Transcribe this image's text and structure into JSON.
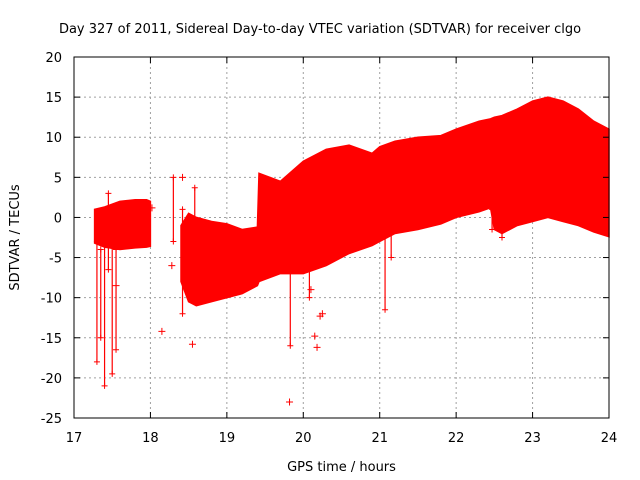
{
  "chart_data": {
    "type": "scatter",
    "title": "Day 327 of 2011, Sidereal Day-to-day VTEC variation (SDTVAR) for receiver clgo",
    "xlabel": "GPS time / hours",
    "ylabel": "SDTVAR / TECUs",
    "xlim": [
      17,
      24
    ],
    "ylim": [
      -25,
      20
    ],
    "xticks": [
      17,
      18,
      19,
      20,
      21,
      22,
      23,
      24
    ],
    "xtick_labels": [
      "17",
      "18",
      "19",
      "20",
      "21",
      "22",
      "23",
      "24"
    ],
    "yticks": [
      -25,
      -20,
      -15,
      -10,
      -5,
      0,
      5,
      10,
      15,
      20
    ],
    "ytick_labels": [
      "-25",
      "-20",
      "-15",
      "-10",
      "-5",
      "0",
      "5",
      "10",
      "15",
      "20"
    ],
    "grid": true,
    "marker": "+",
    "series_color": "#ff0000",
    "envelope": {
      "description_points": "dense band of SDTVAR values; upper and lower bounds vs time",
      "segments": [
        {
          "x": [
            17.27,
            17.4,
            17.6,
            17.8,
            17.95,
            18.0
          ],
          "upper": [
            1.0,
            1.3,
            2.0,
            2.2,
            2.2,
            2.0
          ],
          "lower": [
            -3.2,
            -3.7,
            -4.0,
            -3.8,
            -3.7,
            -3.6
          ]
        },
        {
          "x": [
            18.4,
            18.5,
            18.6,
            18.8,
            19.0,
            19.2,
            19.4,
            19.42,
            19.7,
            20.0,
            20.3,
            20.6,
            20.9,
            21.0,
            21.2,
            21.5,
            21.8,
            22.0,
            22.3,
            22.45,
            22.5,
            22.6,
            22.8,
            23.0,
            23.2,
            23.4,
            23.6,
            23.8,
            24.0
          ],
          "upper": [
            -1.0,
            0.5,
            0.0,
            -0.5,
            -0.8,
            -1.5,
            -1.2,
            5.5,
            4.5,
            7.0,
            8.5,
            9.0,
            8.0,
            8.8,
            9.5,
            10.0,
            10.2,
            11.0,
            12.0,
            12.3,
            12.5,
            12.7,
            13.5,
            14.5,
            15.0,
            14.5,
            13.5,
            12.0,
            11.0
          ],
          "lower": [
            -8.0,
            -10.5,
            -11.0,
            -10.5,
            -10.0,
            -9.5,
            -8.5,
            -8.0,
            -7.0,
            -7.0,
            -6.0,
            -4.5,
            -3.5,
            -3.0,
            -2.0,
            -1.5,
            -0.8,
            0.0,
            0.7,
            1.2,
            -1.5,
            -2.0,
            -1.0,
            -0.5,
            0.0,
            -0.5,
            -1.0,
            -1.8,
            -2.4
          ]
        }
      ]
    },
    "spikes": [
      {
        "x": 17.3,
        "y1": -3.0,
        "y2": -18.0
      },
      {
        "x": 17.35,
        "y1": -4.0,
        "y2": -15.0
      },
      {
        "x": 17.4,
        "y1": -2.0,
        "y2": -21.0
      },
      {
        "x": 17.45,
        "y1": 3.0,
        "y2": -6.5
      },
      {
        "x": 17.5,
        "y1": -3.5,
        "y2": -19.5
      },
      {
        "x": 17.55,
        "y1": -4.0,
        "y2": -16.5
      },
      {
        "x": 18.3,
        "y1": 5.0,
        "y2": -3.0
      },
      {
        "x": 18.42,
        "y1": 1.0,
        "y2": -12.0
      },
      {
        "x": 18.48,
        "y1": -1.0,
        "y2": -9.0
      },
      {
        "x": 18.58,
        "y1": 3.7,
        "y2": -2.5
      },
      {
        "x": 19.83,
        "y1": -5.0,
        "y2": -16.0
      },
      {
        "x": 20.08,
        "y1": -6.0,
        "y2": -10.0
      },
      {
        "x": 21.07,
        "y1": -2.0,
        "y2": -11.5
      },
      {
        "x": 21.15,
        "y1": 0.0,
        "y2": -5.0
      },
      {
        "x": 22.47,
        "y1": 1.0,
        "y2": -1.5
      },
      {
        "x": 22.6,
        "y1": 0.0,
        "y2": -2.5
      }
    ],
    "outliers": [
      {
        "x": 18.02,
        "y": 1.2
      },
      {
        "x": 18.15,
        "y": -14.2
      },
      {
        "x": 18.28,
        "y": -6.0
      },
      {
        "x": 18.42,
        "y": 5.0
      },
      {
        "x": 18.55,
        "y": -15.8
      },
      {
        "x": 17.55,
        "y": -8.5
      },
      {
        "x": 19.82,
        "y": -23.0
      },
      {
        "x": 20.15,
        "y": -14.8
      },
      {
        "x": 20.18,
        "y": -16.2
      },
      {
        "x": 20.22,
        "y": -12.3
      },
      {
        "x": 20.25,
        "y": -12.0
      },
      {
        "x": 20.1,
        "y": -9.0
      },
      {
        "x": 22.55,
        "y": -1.0
      }
    ]
  }
}
